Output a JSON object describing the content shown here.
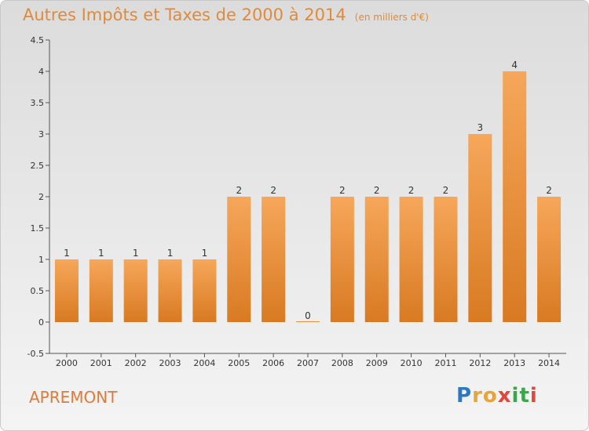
{
  "chart_data": {
    "type": "bar",
    "title": "Autres Impôts et Taxes de 2000 à 2014",
    "subtitle": "(en milliers d'€)",
    "categories": [
      "2000",
      "2001",
      "2002",
      "2003",
      "2004",
      "2005",
      "2006",
      "2007",
      "2008",
      "2009",
      "2010",
      "2011",
      "2012",
      "2013",
      "2014"
    ],
    "values": [
      1,
      1,
      1,
      1,
      1,
      2,
      2,
      0,
      2,
      2,
      2,
      2,
      3,
      4,
      2
    ],
    "ylim": [
      -0.5,
      4.5
    ],
    "yticks": [
      "-0.5",
      "0",
      "0.5",
      "1",
      "1.5",
      "2",
      "2.5",
      "3",
      "3.5",
      "4",
      "4.5"
    ],
    "xlabel": "",
    "ylabel": "",
    "bar_color_top": "#f6a75a",
    "bar_color_bottom": "#d87a22",
    "grid": false
  },
  "commune": "APREMONT",
  "logo": {
    "letters": [
      "P",
      "r",
      "o",
      "x",
      "i",
      "t",
      "i"
    ],
    "colors": [
      "#2b78c5",
      "#e8a43a",
      "#e8a43a",
      "#e2473a",
      "#3aa84a",
      "#3aa84a",
      "#e2473a"
    ]
  }
}
